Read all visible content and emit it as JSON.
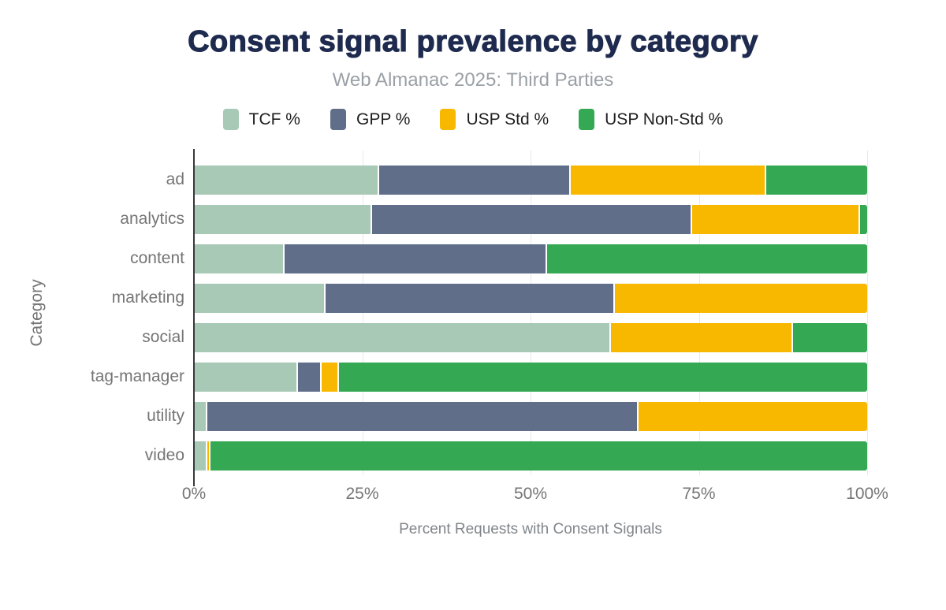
{
  "title": "Consent signal prevalence by category",
  "subtitle": "Web Almanac 2025: Third Parties",
  "colors": {
    "title": "#1e2b4e",
    "subtitle_text": "#9aa0a6",
    "axis_text": "#757575",
    "gridline": "#e9e9e9",
    "axis_line": "#37383c",
    "tcf": "#a7c9b6",
    "gpp": "#606e89",
    "usp_std": "#f9b800",
    "usp_non_std": "#34a853"
  },
  "legend": [
    {
      "label": "TCF %",
      "color": "#a7c9b6"
    },
    {
      "label": "GPP %",
      "color": "#606e89"
    },
    {
      "label": "USP Std %",
      "color": "#f9b800"
    },
    {
      "label": "USP Non-Std %",
      "color": "#34a853"
    }
  ],
  "chart_data": {
    "type": "bar",
    "orientation": "horizontal",
    "stacked": true,
    "title": "Consent signal prevalence by category",
    "subtitle": "Web Almanac 2025: Third Parties",
    "xlabel": "Percent Requests with Consent Signals",
    "ylabel": "Category",
    "xlim": [
      0,
      100
    ],
    "x_ticks": [
      "0%",
      "25%",
      "50%",
      "75%",
      "100%"
    ],
    "grid": true,
    "legend_position": "top",
    "categories": [
      "ad",
      "analytics",
      "content",
      "marketing",
      "social",
      "tag-manager",
      "utility",
      "video"
    ],
    "series": [
      {
        "name": "TCF %",
        "color": "#a7c9b6",
        "values": [
          27.5,
          26.5,
          13.5,
          19.5,
          62.0,
          15.5,
          2.0,
          2.0
        ]
      },
      {
        "name": "GPP %",
        "color": "#606e89",
        "values": [
          28.5,
          47.5,
          39.0,
          43.0,
          0.0,
          3.5,
          64.0,
          0.0
        ]
      },
      {
        "name": "USP Std %",
        "color": "#f9b800",
        "values": [
          29.0,
          25.0,
          0.0,
          37.5,
          27.0,
          2.5,
          34.0,
          0.5
        ]
      },
      {
        "name": "USP Non-Std %",
        "color": "#34a853",
        "values": [
          15.0,
          1.0,
          47.5,
          0.0,
          11.0,
          78.5,
          0.0,
          97.5
        ]
      }
    ]
  }
}
